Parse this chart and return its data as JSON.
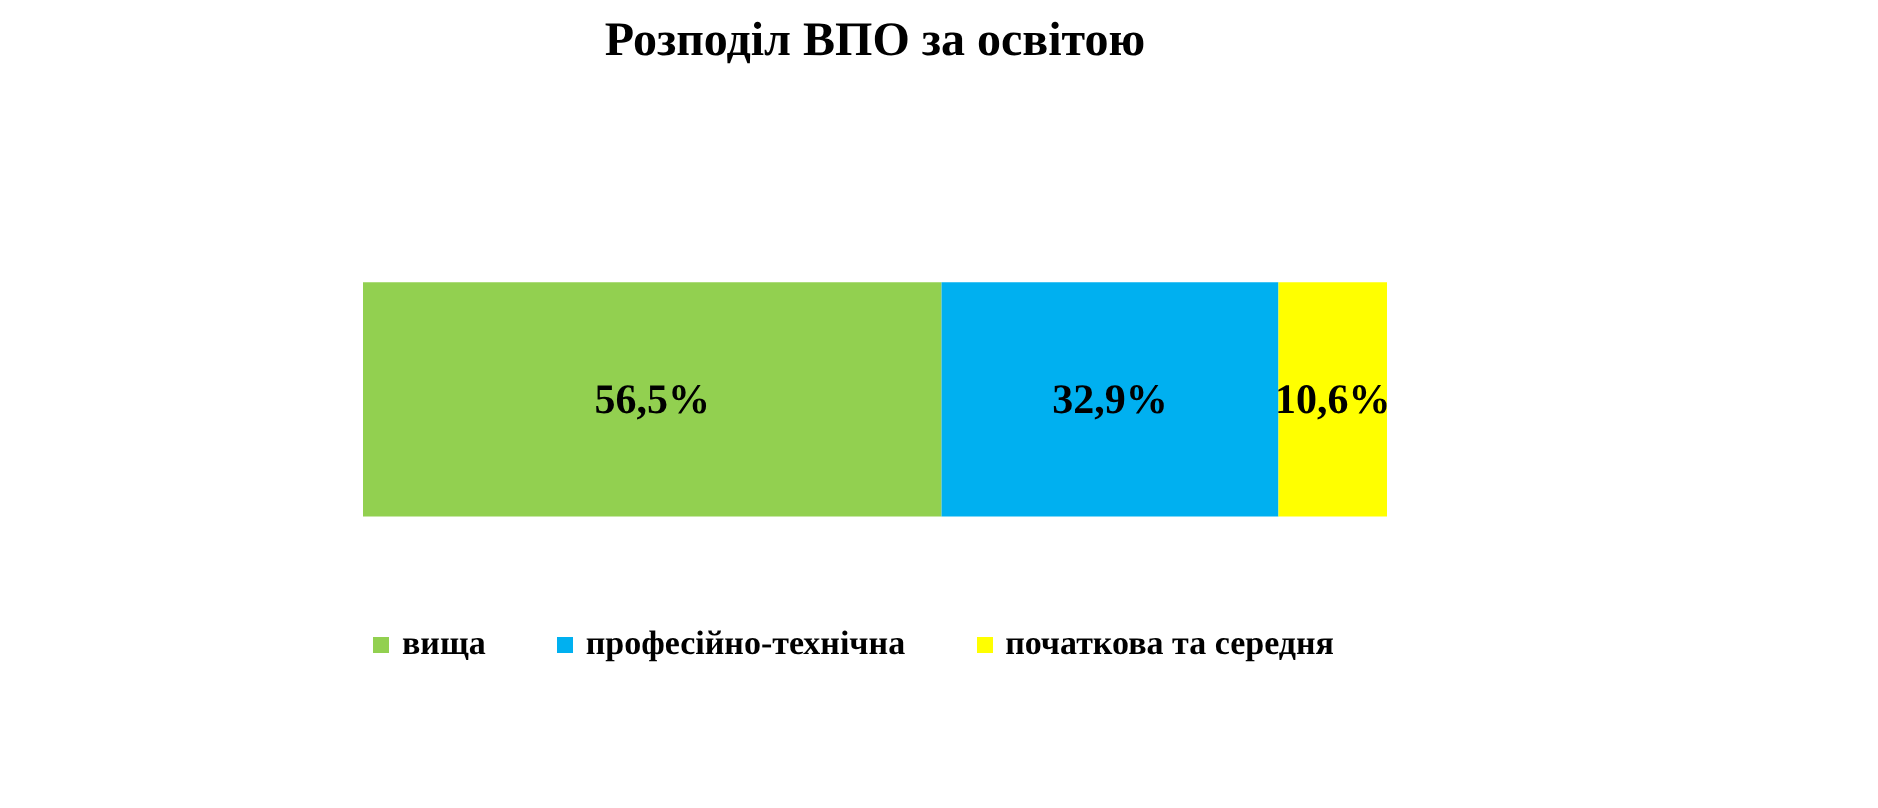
{
  "chart_data": {
    "type": "bar",
    "title": "Розподіл ВПО за освітою",
    "orientation": "horizontal",
    "stacked": true,
    "categories": [
      null
    ],
    "xlim": [
      0,
      100
    ],
    "tick_labels": false,
    "grid": false,
    "legend": "bottom",
    "series": [
      {
        "name": "вища",
        "color": "#92d050",
        "values": [
          56.5
        ],
        "value_labels": [
          "56,5%"
        ]
      },
      {
        "name": "професійно-технічна",
        "color": "#00b0f0",
        "values": [
          32.9
        ],
        "value_labels": [
          "32,9%"
        ]
      },
      {
        "name": "початкова та середня",
        "color": "#ffff00",
        "values": [
          10.6
        ],
        "value_labels": [
          "10,6%"
        ]
      }
    ]
  }
}
